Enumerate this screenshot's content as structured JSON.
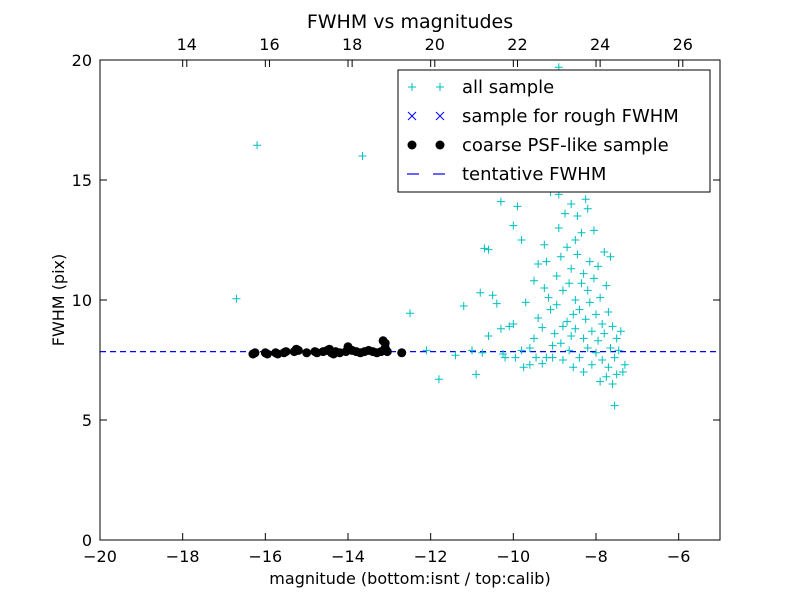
{
  "chart_data": {
    "type": "scatter",
    "title": "FWHM vs magnitudes",
    "xlabel": "magnitude (bottom:isnt / top:calib)",
    "ylabel": "FWHM (pix)",
    "xlim": [
      -20,
      -5
    ],
    "ylim": [
      0,
      20
    ],
    "top_axis": {
      "offset": 31.9,
      "ticks": [
        14,
        16,
        18,
        20,
        22,
        24,
        26
      ]
    },
    "xticks": [
      -20,
      -18,
      -16,
      -14,
      -12,
      -10,
      -8,
      -6
    ],
    "yticks": [
      0,
      5,
      10,
      15,
      20
    ],
    "grid": false,
    "legend": {
      "position": "upper-right"
    },
    "colors": {
      "all_sample": "#00bfbf",
      "rough_sample": "#0000ff",
      "coarse_psf": "#000000",
      "tentative_line": "#0000ff"
    },
    "tentative_fwhm": 7.85,
    "series": [
      {
        "name": "all sample",
        "marker": "plus",
        "points": [
          [
            -16.7,
            10.05
          ],
          [
            -16.2,
            16.45
          ],
          [
            -13.65,
            16.0
          ],
          [
            -12.5,
            9.45
          ],
          [
            -12.1,
            7.9
          ],
          [
            -11.8,
            6.7
          ],
          [
            -11.4,
            7.7
          ],
          [
            -11.2,
            9.75
          ],
          [
            -11.0,
            7.9
          ],
          [
            -10.9,
            6.9
          ],
          [
            -10.8,
            10.3
          ],
          [
            -10.75,
            7.8
          ],
          [
            -10.7,
            12.15
          ],
          [
            -10.6,
            12.1
          ],
          [
            -10.6,
            8.5
          ],
          [
            -10.5,
            10.2
          ],
          [
            -10.4,
            9.85
          ],
          [
            -10.3,
            14.1
          ],
          [
            -10.3,
            8.8
          ],
          [
            -10.25,
            7.75
          ],
          [
            -10.2,
            7.6
          ],
          [
            -10.1,
            8.9
          ],
          [
            -10.0,
            13.1
          ],
          [
            -10.0,
            9.0
          ],
          [
            -9.95,
            7.6
          ],
          [
            -9.9,
            13.9
          ],
          [
            -9.8,
            12.5
          ],
          [
            -9.8,
            7.9
          ],
          [
            -9.75,
            7.2
          ],
          [
            -9.7,
            9.9
          ],
          [
            -9.6,
            8.0
          ],
          [
            -9.6,
            7.3
          ],
          [
            -9.5,
            10.8
          ],
          [
            -9.5,
            8.4
          ],
          [
            -9.45,
            7.6
          ],
          [
            -9.4,
            11.5
          ],
          [
            -9.4,
            9.25
          ],
          [
            -9.3,
            7.35
          ],
          [
            -9.3,
            8.85
          ],
          [
            -9.25,
            12.3
          ],
          [
            -9.25,
            10.5
          ],
          [
            -9.2,
            7.6
          ],
          [
            -9.2,
            11.6
          ],
          [
            -9.15,
            10.1
          ],
          [
            -9.1,
            14.5
          ],
          [
            -9.1,
            9.6
          ],
          [
            -9.05,
            8.1
          ],
          [
            -9.05,
            7.6
          ],
          [
            -9.0,
            8.6
          ],
          [
            -8.95,
            11.0
          ],
          [
            -8.95,
            9.8
          ],
          [
            -8.9,
            14.4
          ],
          [
            -8.9,
            13.0
          ],
          [
            -8.9,
            19.7
          ],
          [
            -8.85,
            11.8
          ],
          [
            -8.85,
            8.2
          ],
          [
            -8.8,
            10.4
          ],
          [
            -8.8,
            8.9
          ],
          [
            -8.8,
            7.5
          ],
          [
            -8.75,
            13.6
          ],
          [
            -8.75,
            15.8
          ],
          [
            -8.7,
            9.1
          ],
          [
            -8.7,
            12.2
          ],
          [
            -8.65,
            10.7
          ],
          [
            -8.65,
            7.9
          ],
          [
            -8.6,
            11.3
          ],
          [
            -8.6,
            8.5
          ],
          [
            -8.6,
            14.0
          ],
          [
            -8.55,
            16.5
          ],
          [
            -8.55,
            9.4
          ],
          [
            -8.55,
            7.2
          ],
          [
            -8.5,
            12.5
          ],
          [
            -8.5,
            10.0
          ],
          [
            -8.5,
            8.8
          ],
          [
            -8.45,
            11.9
          ],
          [
            -8.45,
            13.5
          ],
          [
            -8.4,
            9.6
          ],
          [
            -8.4,
            7.6
          ],
          [
            -8.35,
            10.7
          ],
          [
            -8.35,
            12.8
          ],
          [
            -8.3,
            8.4
          ],
          [
            -8.3,
            11.1
          ],
          [
            -8.3,
            7.0
          ],
          [
            -8.25,
            9.2
          ],
          [
            -8.25,
            14.2
          ],
          [
            -8.2,
            13.8
          ],
          [
            -8.2,
            10.4
          ],
          [
            -8.2,
            8.0
          ],
          [
            -8.15,
            11.6
          ],
          [
            -8.15,
            9.9
          ],
          [
            -8.1,
            7.3
          ],
          [
            -8.1,
            8.7
          ],
          [
            -8.05,
            12.9
          ],
          [
            -8.05,
            10.9
          ],
          [
            -8.0,
            9.4
          ],
          [
            -8.0,
            7.8
          ],
          [
            -7.95,
            11.4
          ],
          [
            -7.95,
            8.3
          ],
          [
            -7.9,
            6.6
          ],
          [
            -7.9,
            10.1
          ],
          [
            -7.85,
            7.5
          ],
          [
            -7.85,
            9.0
          ],
          [
            -7.8,
            12.0
          ],
          [
            -7.8,
            8.6
          ],
          [
            -7.75,
            6.8
          ],
          [
            -7.75,
            10.6
          ],
          [
            -7.7,
            7.2
          ],
          [
            -7.7,
            9.5
          ],
          [
            -7.65,
            8.0
          ],
          [
            -7.65,
            11.8
          ],
          [
            -7.6,
            6.5
          ],
          [
            -7.6,
            8.9
          ],
          [
            -7.55,
            5.6
          ],
          [
            -7.55,
            7.6
          ],
          [
            -7.5,
            8.4
          ],
          [
            -7.5,
            6.9
          ],
          [
            -7.45,
            7.9
          ],
          [
            -7.4,
            8.7
          ],
          [
            -7.35,
            7.0
          ],
          [
            -7.3,
            7.3
          ]
        ]
      },
      {
        "name": "sample for rough FWHM",
        "marker": "x",
        "points": []
      },
      {
        "name": "coarse PSF-like sample",
        "marker": "circle",
        "points": [
          [
            -16.3,
            7.75
          ],
          [
            -16.25,
            7.8
          ],
          [
            -16.0,
            7.8
          ],
          [
            -15.95,
            7.75
          ],
          [
            -15.75,
            7.8
          ],
          [
            -15.7,
            7.75
          ],
          [
            -15.55,
            7.8
          ],
          [
            -15.5,
            7.85
          ],
          [
            -15.3,
            7.85
          ],
          [
            -15.25,
            7.95
          ],
          [
            -15.2,
            7.9
          ],
          [
            -15.0,
            7.8
          ],
          [
            -14.8,
            7.85
          ],
          [
            -14.75,
            7.8
          ],
          [
            -14.6,
            7.85
          ],
          [
            -14.5,
            7.9
          ],
          [
            -14.45,
            7.95
          ],
          [
            -14.4,
            7.8
          ],
          [
            -14.35,
            7.75
          ],
          [
            -14.3,
            7.85
          ],
          [
            -14.2,
            7.8
          ],
          [
            -14.05,
            7.85
          ],
          [
            -14.0,
            8.05
          ],
          [
            -13.9,
            7.9
          ],
          [
            -13.8,
            7.85
          ],
          [
            -13.7,
            7.8
          ],
          [
            -13.6,
            7.85
          ],
          [
            -13.5,
            7.9
          ],
          [
            -13.4,
            7.85
          ],
          [
            -13.3,
            7.8
          ],
          [
            -13.2,
            7.85
          ],
          [
            -13.15,
            8.3
          ],
          [
            -13.1,
            8.2
          ],
          [
            -13.1,
            8.0
          ],
          [
            -13.05,
            7.85
          ],
          [
            -12.7,
            7.8
          ]
        ]
      },
      {
        "name": "tentative FWHM",
        "marker": "dashed-line",
        "points": []
      }
    ]
  }
}
